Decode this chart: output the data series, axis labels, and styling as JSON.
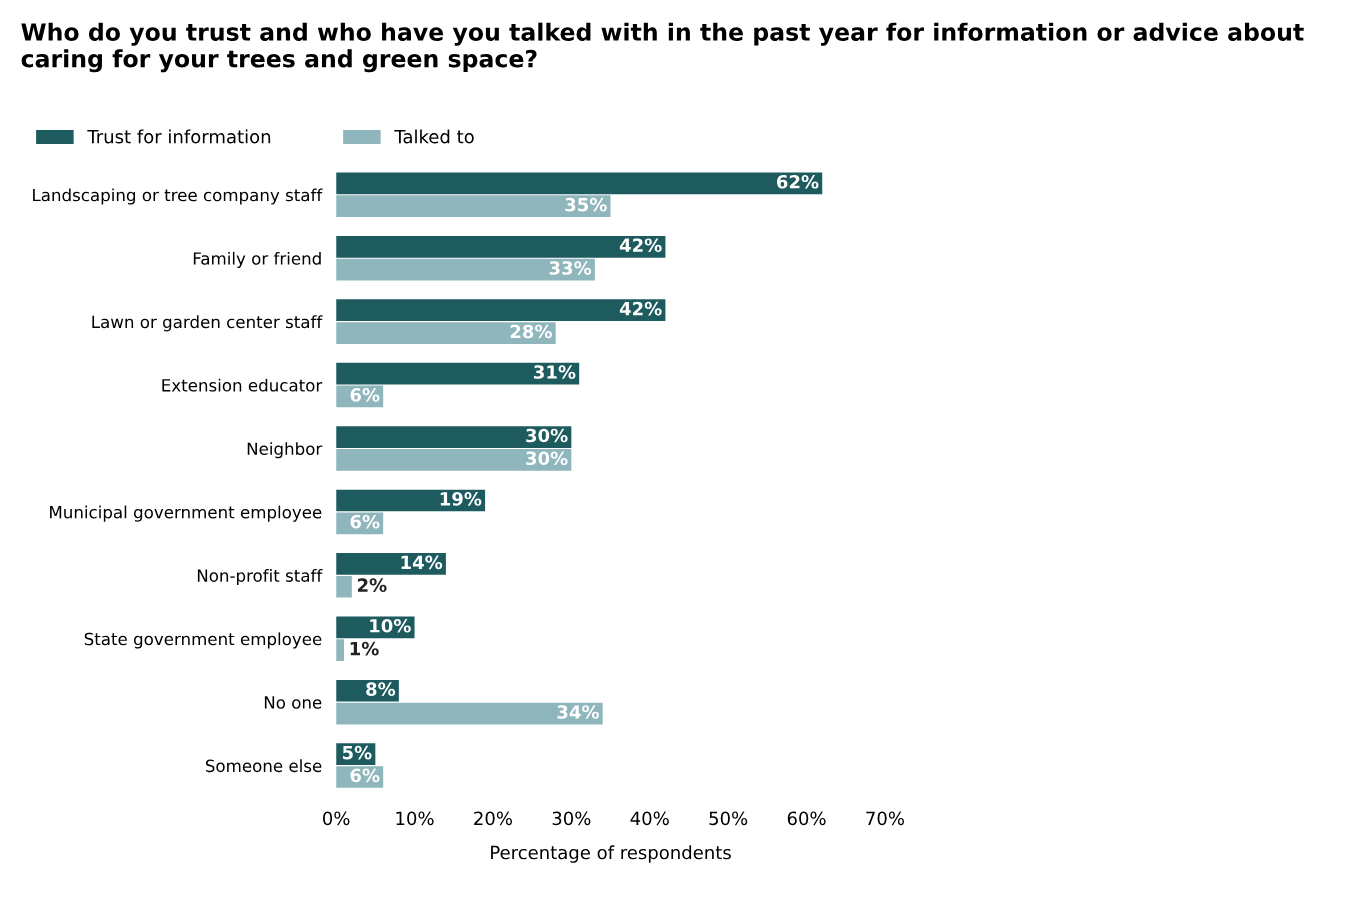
{
  "chart_data": {
    "type": "bar",
    "orientation": "horizontal",
    "title": "Who do you trust and who have you talked with in the past year for information or advice about caring for your trees and green space?",
    "xlabel": "Percentage of respondents",
    "categories": [
      "Landscaping or tree company staff",
      "Family or friend",
      "Lawn or garden center staff",
      "Extension educator",
      "Neighbor",
      "Municipal government employee",
      "Non-profit staff",
      "State government employee",
      "No one",
      "Someone else"
    ],
    "series": [
      {
        "name": "Trust for information",
        "color": "#1e5b5f",
        "values": [
          62,
          42,
          42,
          31,
          30,
          19,
          14,
          10,
          8,
          5
        ],
        "value_labels": [
          "62%",
          "42%",
          "42%",
          "31%",
          "30%",
          "19%",
          "14%",
          "10%",
          "8%",
          "5%"
        ]
      },
      {
        "name": "Talked to",
        "color": "#8fb6bc",
        "values": [
          35,
          33,
          28,
          6,
          30,
          6,
          2,
          1,
          34,
          6
        ],
        "value_labels": [
          "35%",
          "33%",
          "28%",
          "6%",
          "30%",
          "6%",
          "2%",
          "1%",
          "34%",
          "6%"
        ]
      }
    ],
    "xlim": [
      0,
      70
    ],
    "xticks": [
      {
        "value": 0,
        "label": "0%"
      },
      {
        "value": 10,
        "label": "10%"
      },
      {
        "value": 20,
        "label": "20%"
      },
      {
        "value": 30,
        "label": "30%"
      },
      {
        "value": 40,
        "label": "40%"
      },
      {
        "value": 50,
        "label": "50%"
      },
      {
        "value": 60,
        "label": "60%"
      },
      {
        "value": 70,
        "label": "70%"
      }
    ],
    "legend": "top left",
    "grid": false
  }
}
